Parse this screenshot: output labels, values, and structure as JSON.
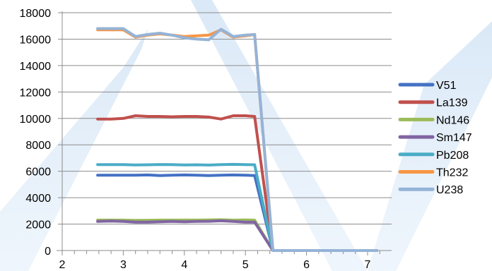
{
  "chart_data": {
    "type": "line",
    "title": "",
    "xlabel": "",
    "ylabel": "",
    "xlim": [
      2,
      7.2
    ],
    "ylim": [
      0,
      18000
    ],
    "x_ticks": [
      "2",
      "3",
      "4",
      "5",
      "6",
      "7"
    ],
    "y_ticks": [
      "0",
      "2000",
      "4000",
      "6000",
      "8000",
      "10000",
      "12000",
      "14000",
      "16000",
      "18000"
    ],
    "grid": "horizontal",
    "legend_position": "right",
    "x": [
      2.58,
      2.8,
      3.0,
      3.2,
      3.4,
      3.6,
      3.8,
      4.0,
      4.2,
      4.4,
      4.6,
      4.8,
      5.0,
      5.15,
      5.45,
      5.7,
      6.0,
      6.3,
      6.6,
      6.9,
      7.15
    ],
    "series": [
      {
        "name": "V51",
        "color": "#4472C4",
        "values": [
          5700,
          5700,
          5700,
          5700,
          5720,
          5680,
          5700,
          5720,
          5700,
          5680,
          5700,
          5720,
          5700,
          5680,
          0,
          0,
          0,
          0,
          0,
          0,
          0
        ]
      },
      {
        "name": "La139",
        "color": "#C0504D",
        "values": [
          9950,
          9950,
          10000,
          10200,
          10150,
          10150,
          10120,
          10150,
          10150,
          10100,
          9950,
          10200,
          10200,
          10150,
          0,
          0,
          0,
          0,
          0,
          0,
          0
        ]
      },
      {
        "name": "Nd146",
        "color": "#9BBB59",
        "values": [
          2300,
          2300,
          2300,
          2280,
          2290,
          2300,
          2300,
          2310,
          2300,
          2320,
          2330,
          2300,
          2320,
          2300,
          0,
          0,
          0,
          0,
          0,
          0,
          0
        ]
      },
      {
        "name": "Sm147",
        "color": "#8064A2",
        "values": [
          2200,
          2230,
          2200,
          2150,
          2150,
          2180,
          2200,
          2180,
          2200,
          2210,
          2250,
          2200,
          2150,
          2150,
          0,
          0,
          0,
          0,
          0,
          0,
          0
        ]
      },
      {
        "name": "Pb208",
        "color": "#4BACC6",
        "values": [
          6500,
          6500,
          6500,
          6480,
          6490,
          6510,
          6500,
          6480,
          6490,
          6470,
          6500,
          6520,
          6500,
          6490,
          0,
          0,
          0,
          0,
          0,
          0,
          0
        ]
      },
      {
        "name": "Th232",
        "color": "#F79646",
        "values": [
          16700,
          16700,
          16700,
          16150,
          16300,
          16400,
          16300,
          16200,
          16250,
          16300,
          16700,
          16150,
          16250,
          16350,
          0,
          0,
          0,
          0,
          0,
          0,
          0
        ]
      },
      {
        "name": "U238",
        "color": "#95B3D7",
        "values": [
          16800,
          16800,
          16800,
          16200,
          16350,
          16450,
          16300,
          16100,
          16000,
          15950,
          16750,
          16200,
          16300,
          16350,
          0,
          0,
          0,
          0,
          0,
          0,
          0
        ]
      }
    ]
  }
}
